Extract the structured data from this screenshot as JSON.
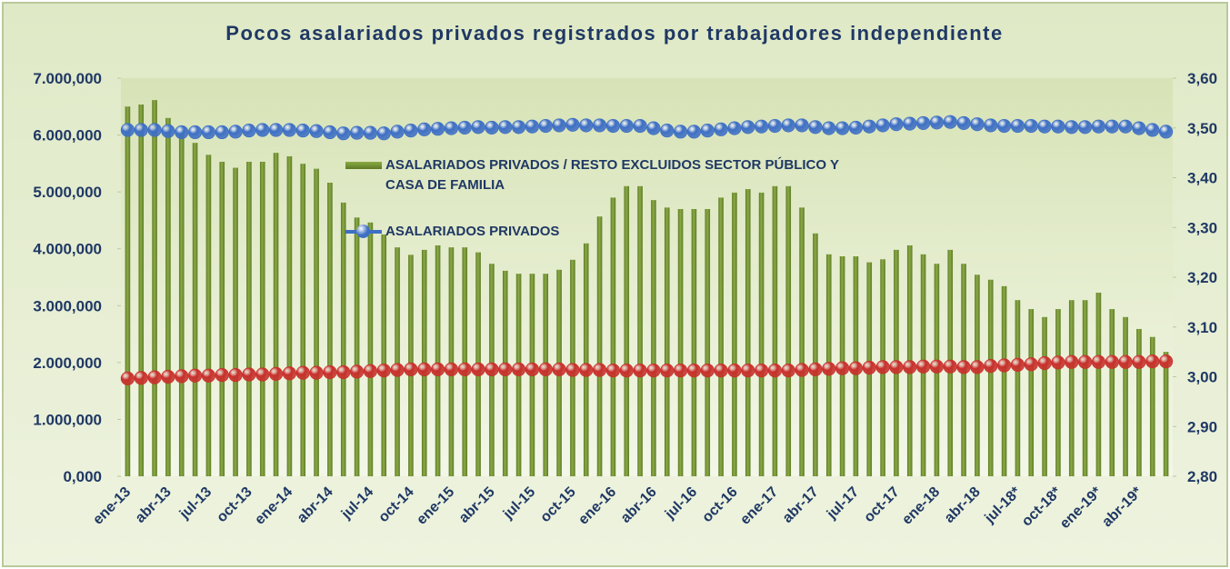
{
  "chart_data": {
    "type": "bar",
    "title": "Pocos asalariados privados registrados por trabajadores   independiente",
    "categories": [
      "ene-13",
      null,
      null,
      "abr-13",
      null,
      null,
      "jul-13",
      null,
      null,
      "oct-13",
      null,
      null,
      "ene-14",
      null,
      null,
      "abr-14",
      null,
      null,
      "jul-14",
      null,
      null,
      "oct-14",
      null,
      null,
      "ene-15",
      null,
      null,
      "abr-15",
      null,
      null,
      "jul-15",
      null,
      null,
      "oct-15",
      null,
      null,
      "ene-16",
      null,
      null,
      "abr-16",
      null,
      null,
      "jul-16",
      null,
      null,
      "oct-16",
      null,
      null,
      "ene-17",
      null,
      null,
      "abr-17",
      null,
      null,
      "jul-17",
      null,
      null,
      "oct-17",
      null,
      null,
      "ene-18",
      null,
      null,
      "abr-18",
      null,
      null,
      "jul-18*",
      null,
      null,
      "oct-18*",
      null,
      null,
      "ene-19*",
      null,
      null,
      "abr-19*",
      null,
      null
    ],
    "series": [
      {
        "name": "ASALARIADOS PRIVADOS / RESTO  EXCLUIDOS SECTOR PÚBLICO Y CASA DE FAMILIA",
        "type": "bar",
        "axis": "y2",
        "color": "#8aab45",
        "values": [
          3.543,
          3.547,
          3.556,
          3.52,
          3.49,
          3.47,
          3.446,
          3.432,
          3.42,
          3.432,
          3.432,
          3.45,
          3.443,
          3.428,
          3.418,
          3.39,
          3.35,
          3.32,
          3.31,
          3.286,
          3.26,
          3.245,
          3.255,
          3.264,
          3.26,
          3.26,
          3.25,
          3.227,
          3.213,
          3.207,
          3.207,
          3.207,
          3.215,
          3.235,
          3.268,
          3.322,
          3.36,
          3.383,
          3.383,
          3.355,
          3.34,
          3.337,
          3.337,
          3.337,
          3.36,
          3.37,
          3.377,
          3.37,
          3.383,
          3.383,
          3.34,
          3.288,
          3.246,
          3.242,
          3.242,
          3.23,
          3.236,
          3.255,
          3.264,
          3.246,
          3.227,
          3.255,
          3.227,
          3.205,
          3.195,
          3.182,
          3.154,
          3.136,
          3.12,
          3.136,
          3.154,
          3.154,
          3.169,
          3.136,
          3.12,
          3.096,
          3.08,
          3.05
        ]
      },
      {
        "name": "ASALARIADOS PRIVADOS",
        "type": "scatter",
        "color": "#3e6fc4",
        "values": [
          6090000,
          6090000,
          6090000,
          6070000,
          6050000,
          6050000,
          6050000,
          6050000,
          6060000,
          6080000,
          6090000,
          6090000,
          6090000,
          6080000,
          6070000,
          6050000,
          6030000,
          6040000,
          6040000,
          6030000,
          6060000,
          6080000,
          6100000,
          6110000,
          6120000,
          6130000,
          6140000,
          6130000,
          6140000,
          6140000,
          6150000,
          6160000,
          6170000,
          6180000,
          6170000,
          6170000,
          6160000,
          6160000,
          6160000,
          6120000,
          6080000,
          6060000,
          6060000,
          6080000,
          6100000,
          6120000,
          6140000,
          6150000,
          6160000,
          6170000,
          6170000,
          6140000,
          6120000,
          6120000,
          6130000,
          6150000,
          6170000,
          6190000,
          6200000,
          6210000,
          6220000,
          6230000,
          6210000,
          6190000,
          6170000,
          6160000,
          6160000,
          6160000,
          6150000,
          6150000,
          6140000,
          6140000,
          6150000,
          6150000,
          6150000,
          6120000,
          6090000,
          6060000
        ]
      },
      {
        "type": "scatter",
        "color": "#c8302c",
        "values": [
          1720000,
          1730000,
          1740000,
          1750000,
          1760000,
          1770000,
          1770000,
          1780000,
          1780000,
          1790000,
          1790000,
          1800000,
          1810000,
          1820000,
          1820000,
          1830000,
          1830000,
          1840000,
          1850000,
          1860000,
          1870000,
          1880000,
          1880000,
          1880000,
          1880000,
          1880000,
          1880000,
          1880000,
          1880000,
          1880000,
          1880000,
          1880000,
          1880000,
          1870000,
          1870000,
          1870000,
          1860000,
          1860000,
          1860000,
          1860000,
          1860000,
          1860000,
          1860000,
          1860000,
          1860000,
          1860000,
          1860000,
          1860000,
          1860000,
          1860000,
          1870000,
          1880000,
          1890000,
          1900000,
          1900000,
          1910000,
          1920000,
          1920000,
          1920000,
          1930000,
          1930000,
          1930000,
          1920000,
          1920000,
          1940000,
          1950000,
          1960000,
          1970000,
          1990000,
          2000000,
          2010000,
          2010000,
          2010000,
          2010000,
          2010000,
          2010000,
          2020000,
          2020000
        ]
      }
    ],
    "ylim": [
      0,
      7000000
    ],
    "yticks": [
      {
        "value": 0,
        "label": "0,000"
      },
      {
        "value": 1000000,
        "label": "1.000,000"
      },
      {
        "value": 2000000,
        "label": "2.000,000"
      },
      {
        "value": 3000000,
        "label": "3.000,000"
      },
      {
        "value": 4000000,
        "label": "4.000,000"
      },
      {
        "value": 5000000,
        "label": "5.000,000"
      },
      {
        "value": 6000000,
        "label": "6.000,000"
      },
      {
        "value": 7000000,
        "label": "7.000,000"
      }
    ],
    "y2lim": [
      2.8,
      3.6
    ],
    "y2ticks": [
      {
        "value": 2.8,
        "label": "2,80"
      },
      {
        "value": 2.9,
        "label": "2,90"
      },
      {
        "value": 3.0,
        "label": "3,00"
      },
      {
        "value": 3.1,
        "label": "3,10"
      },
      {
        "value": 3.2,
        "label": "3,20"
      },
      {
        "value": 3.3,
        "label": "3,30"
      },
      {
        "value": 3.4,
        "label": "3,40"
      },
      {
        "value": 3.5,
        "label": "3,50"
      },
      {
        "value": 3.6,
        "label": "3,60"
      }
    ],
    "legend": "top-left"
  }
}
